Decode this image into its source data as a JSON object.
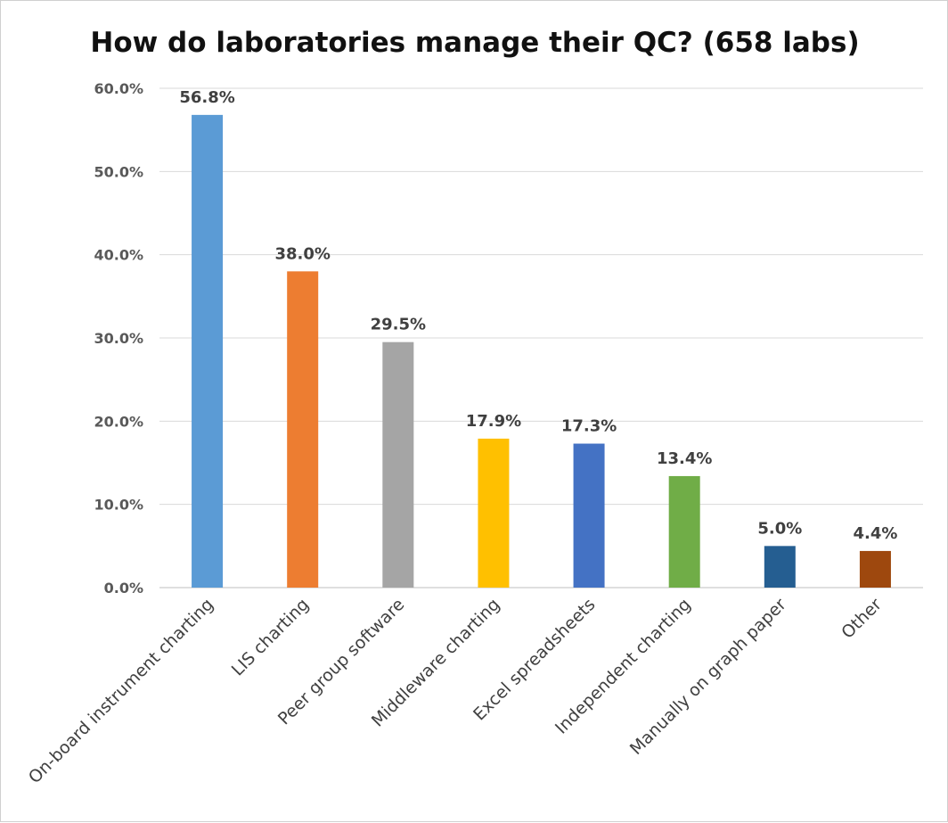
{
  "chart_data": {
    "type": "bar",
    "title": "How do laboratories manage their QC? (658 labs)",
    "xlabel": "",
    "ylabel": "",
    "ylim": [
      0,
      60
    ],
    "yticks": [
      "0.0%",
      "10.0%",
      "20.0%",
      "30.0%",
      "40.0%",
      "50.0%",
      "60.0%"
    ],
    "grid": true,
    "legend": "none",
    "categories": [
      "On-board instrument charting",
      "LIS charting",
      "Peer group software",
      "Middleware charting",
      "Excel spreadsheets",
      "Independent charting",
      "Manually on graph paper",
      "Other"
    ],
    "values": [
      56.8,
      38.0,
      29.5,
      17.9,
      17.3,
      13.4,
      5.0,
      4.4
    ],
    "data_labels": [
      "56.8%",
      "38.0%",
      "29.5%",
      "17.9%",
      "17.3%",
      "13.4%",
      "5.0%",
      "4.4%"
    ],
    "colors": [
      "#5B9BD5",
      "#ED7D31",
      "#A5A5A5",
      "#FFC000",
      "#4472C4",
      "#70AD47",
      "#255E91",
      "#9E480E"
    ]
  }
}
